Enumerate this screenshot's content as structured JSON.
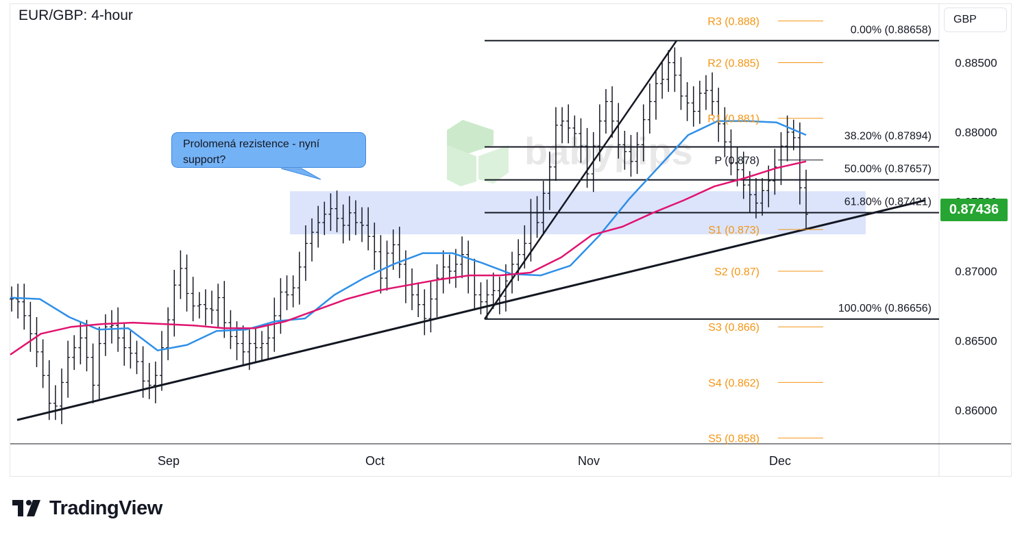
{
  "header": {
    "title": "EUR/GBP: 4-hour",
    "currency": "GBP"
  },
  "current_price": "0.87436",
  "annotation": {
    "text": "Prolomená rezistence - nyní support?"
  },
  "branding": {
    "tradingview": "TradingView"
  },
  "colors": {
    "sma_fast": "#2e8fe8",
    "sma_slow": "#e0136e",
    "pivot_levels": "#f39513",
    "current_price_tag": "#26a532",
    "zone": "#c9d5fa",
    "candles": "#131722"
  },
  "chart_data": {
    "type": "candlestick",
    "title": "EUR/GBP: 4-hour",
    "y_axis": {
      "currency": "GBP",
      "ticks": [
        "0.88500",
        "0.88000",
        "0.87500",
        "0.87000",
        "0.86500",
        "0.86000"
      ],
      "range": [
        0.8568,
        0.8893
      ]
    },
    "x_axis": {
      "ticks": [
        "Sep",
        "Oct",
        "Nov",
        "Dec"
      ]
    },
    "current_price": 0.87436,
    "pivot_levels": [
      {
        "label": "R3 (0.888)",
        "value": 0.888
      },
      {
        "label": "R2 (0.885)",
        "value": 0.885
      },
      {
        "label": "R1 (0.881)",
        "value": 0.881
      },
      {
        "label": "P (0.878)",
        "value": 0.878
      },
      {
        "label": "S1 (0.873)",
        "value": 0.873
      },
      {
        "label": "S2 (0.87)",
        "value": 0.87
      },
      {
        "label": "S3 (0.866)",
        "value": 0.866
      },
      {
        "label": "S4 (0.862)",
        "value": 0.862
      },
      {
        "label": "S5 (0.858)",
        "value": 0.858
      }
    ],
    "fibonacci_levels": [
      {
        "label": "0.00% (0.88658)",
        "value": 0.88658
      },
      {
        "label": "38.20% (0.87894)",
        "value": 0.87894
      },
      {
        "label": "50.00% (0.87657)",
        "value": 0.87657
      },
      {
        "label": "61.80% (0.87421)",
        "value": 0.87421
      },
      {
        "label": "100.00% (0.86656)",
        "value": 0.86656
      }
    ],
    "support_zone": [
      0.87265,
      0.87575
    ],
    "trendlines": [
      {
        "name": "support",
        "from_price": 0.8593,
        "to_price": 0.8751
      },
      {
        "name": "rally",
        "from_price": 0.86656,
        "to_price": 0.88658
      }
    ],
    "moving_averages": [
      {
        "color": "#2e8fe8",
        "values": [
          0.8681,
          0.868,
          0.8667,
          0.8658,
          0.8659,
          0.8643,
          0.8647,
          0.8657,
          0.8658,
          0.8664,
          0.8666,
          0.8683,
          0.8695,
          0.8705,
          0.8713,
          0.8713,
          0.8706,
          0.8698,
          0.8697,
          0.8704,
          0.8726,
          0.8752,
          0.8775,
          0.8798,
          0.8808,
          0.8808,
          0.8807,
          0.8798
        ]
      },
      {
        "color": "#e0136e",
        "values": [
          0.864,
          0.8655,
          0.866,
          0.8662,
          0.8663,
          0.8662,
          0.8661,
          0.8659,
          0.8659,
          0.8664,
          0.8672,
          0.868,
          0.8686,
          0.869,
          0.8694,
          0.8697,
          0.8697,
          0.8699,
          0.871,
          0.8726,
          0.8732,
          0.8742,
          0.8751,
          0.8761,
          0.8767,
          0.8774,
          0.8779
        ]
      }
    ],
    "candles_close": [
      0.868,
      0.8678,
      0.8668,
      0.8655,
      0.8642,
      0.8625,
      0.8605,
      0.8603,
      0.862,
      0.8638,
      0.8645,
      0.8652,
      0.8638,
      0.8618,
      0.8648,
      0.866,
      0.8661,
      0.8652,
      0.8645,
      0.8641,
      0.8635,
      0.8621,
      0.8618,
      0.8625,
      0.8645,
      0.8665,
      0.869,
      0.8702,
      0.8684,
      0.8675,
      0.8676,
      0.8673,
      0.8672,
      0.8681,
      0.8663,
      0.8653,
      0.8648,
      0.8642,
      0.8648,
      0.8645,
      0.8648,
      0.8652,
      0.8668,
      0.8685,
      0.8683,
      0.8688,
      0.8703,
      0.872,
      0.8728,
      0.8735,
      0.8741,
      0.8745,
      0.8738,
      0.8733,
      0.8742,
      0.8735,
      0.8733,
      0.8725,
      0.8714,
      0.8695,
      0.8713,
      0.8719,
      0.8705,
      0.869,
      0.8683,
      0.8676,
      0.8666,
      0.868,
      0.8695,
      0.8703,
      0.87,
      0.8705,
      0.8712,
      0.8697,
      0.8683,
      0.8678,
      0.8683,
      0.8686,
      0.8682,
      0.8693,
      0.8705,
      0.8712,
      0.872,
      0.8742,
      0.8735,
      0.8756,
      0.8775,
      0.8805,
      0.8808,
      0.8803,
      0.8799,
      0.879,
      0.877,
      0.879,
      0.8808,
      0.8822,
      0.8808,
      0.8791,
      0.8786,
      0.8779,
      0.8791,
      0.8809,
      0.8822,
      0.8835,
      0.8838,
      0.885,
      0.8841,
      0.8826,
      0.8821,
      0.8815,
      0.8828,
      0.883,
      0.8822,
      0.8806,
      0.8793,
      0.8778,
      0.8773,
      0.8762,
      0.8755,
      0.8749,
      0.8758,
      0.8765,
      0.8775,
      0.879,
      0.88,
      0.8796,
      0.876,
      0.8741
    ]
  }
}
